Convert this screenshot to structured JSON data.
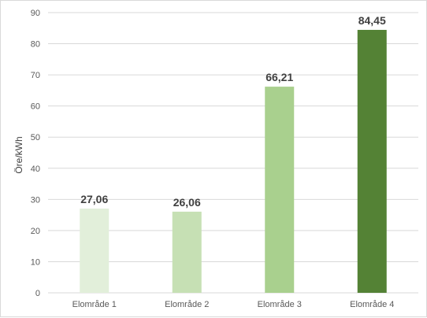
{
  "chart_data": {
    "type": "bar",
    "categories": [
      "Elområde 1",
      "Elområde 2",
      "Elområde 3",
      "Elområde 4"
    ],
    "values": [
      27.06,
      26.06,
      66.21,
      84.45
    ],
    "data_labels": [
      "27,06",
      "26,06",
      "66,21",
      "84,45"
    ],
    "bar_colors": [
      "#e2efda",
      "#c6e0b4",
      "#a9d08e",
      "#548235"
    ],
    "title": "",
    "xlabel": "",
    "ylabel": "Öre/kWh",
    "ylim": [
      0,
      90
    ],
    "yticks": [
      0,
      10,
      20,
      30,
      40,
      50,
      60,
      70,
      80,
      90
    ],
    "grid": true,
    "gridline_color": "#d9d9d9",
    "legend": "none"
  }
}
